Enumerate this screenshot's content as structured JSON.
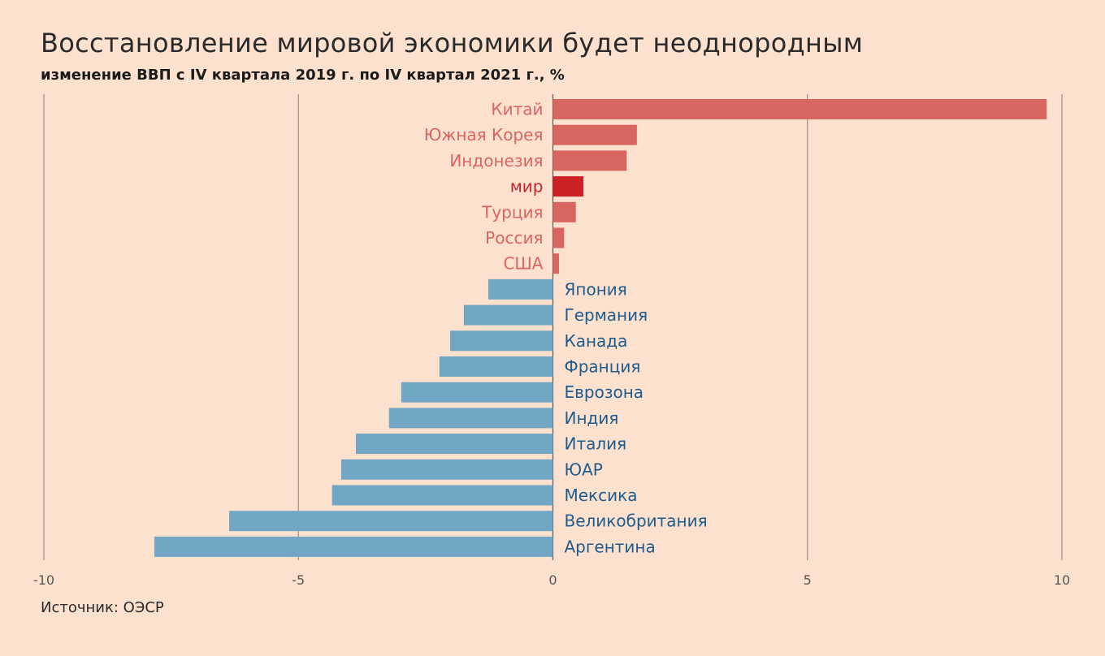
{
  "title": "Восстановление мировой экономики будет неоднородным",
  "subtitle": "изменение ВВП с IV квартала 2019 г. по IV квартал 2021 г., %",
  "source": "Источник: ОЭСР",
  "colors": {
    "positive": "#d96561",
    "negative": "#72a6c5",
    "highlight": "#cc2226",
    "negative_label": "#1e5c8c",
    "background": "#fde1cf"
  },
  "chart_data": {
    "type": "bar",
    "orientation": "horizontal",
    "categories": [
      "Китай",
      "Южная Корея",
      "Индонезия",
      "мир",
      "Турция",
      "Россия",
      "США",
      "Япония",
      "Германия",
      "Канада",
      "Франция",
      "Еврозона",
      "Индия",
      "Италия",
      "ЮАР",
      "Мексика",
      "Великобритания",
      "Аргентина"
    ],
    "values": [
      9.7,
      1.65,
      1.45,
      0.6,
      0.45,
      0.22,
      0.12,
      -1.27,
      -1.75,
      -2.02,
      -2.23,
      -2.98,
      -3.22,
      -3.87,
      -4.16,
      -4.34,
      -6.36,
      -7.83
    ],
    "highlight": "мир",
    "xlim": [
      -10,
      10
    ],
    "xticks": [
      -10,
      -5,
      0,
      5,
      10
    ],
    "grid": true,
    "legend": "none"
  }
}
